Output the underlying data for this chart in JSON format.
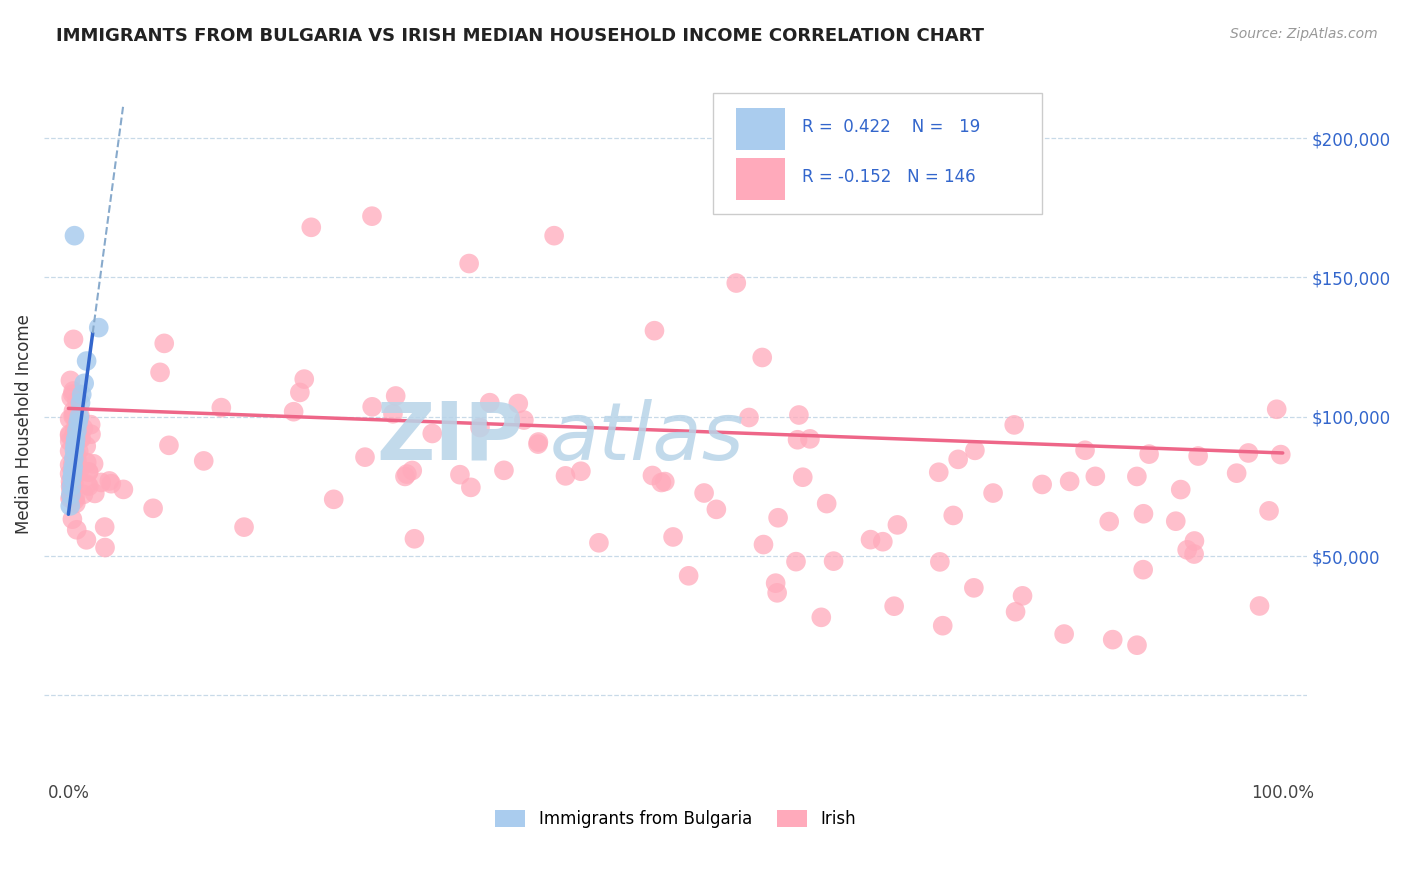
{
  "title": "IMMIGRANTS FROM BULGARIA VS IRISH MEDIAN HOUSEHOLD INCOME CORRELATION CHART",
  "source_text": "Source: ZipAtlas.com",
  "ylabel": "Median Household Income",
  "title_color": "#222222",
  "title_fontsize": 13,
  "watermark_line1": "ZIP",
  "watermark_line2": "atlas",
  "watermark_color": "#b8d4e8",
  "bg_color": "#ffffff",
  "grid_color": "#c8dae8",
  "legend_text_color": "#3366cc",
  "blue_scatter_color": "#aaccee",
  "pink_scatter_color": "#ffaabb",
  "blue_line_color": "#3366cc",
  "pink_line_color": "#ee6688",
  "blue_dash_color": "#88aacc",
  "source_color": "#999999",
  "blue_R": 0.422,
  "blue_N": 19,
  "pink_R": -0.152,
  "pink_N": 146,
  "ylim_low": -30000,
  "ylim_high": 225000,
  "xlim_low": -2,
  "xlim_high": 102
}
